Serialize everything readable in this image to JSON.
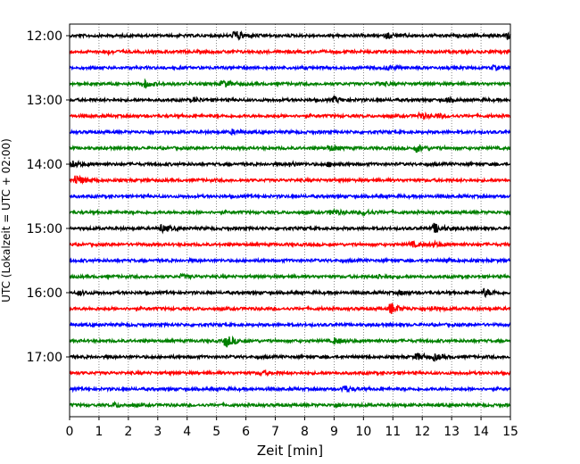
{
  "chart_data": {
    "type": "line",
    "title": "",
    "xlabel": "Zeit  [min]",
    "ylabel": "UTC (Lokalzeit = UTC + 02:00)",
    "xlim": [
      0,
      15
    ],
    "x_ticks": [
      "0",
      "1",
      "2",
      "3",
      "4",
      "5",
      "6",
      "7",
      "8",
      "9",
      "10",
      "11",
      "12",
      "13",
      "14",
      "15"
    ],
    "y_ticks": [
      "12:00",
      "13:00",
      "14:00",
      "15:00",
      "16:00",
      "17:00"
    ],
    "grid": "vertical dotted",
    "trace_interval_minutes": 15,
    "traces": [
      {
        "start": "12:00",
        "color": "#000000",
        "events": [
          [
            5.6,
            6
          ],
          [
            10.8,
            3
          ],
          [
            14.8,
            5
          ]
        ]
      },
      {
        "start": "12:15",
        "color": "#ff0000",
        "events": [
          [
            1.2,
            2
          ]
        ]
      },
      {
        "start": "12:30",
        "color": "#0000ff",
        "events": [
          [
            10.8,
            2
          ],
          [
            14.4,
            2
          ]
        ]
      },
      {
        "start": "12:45",
        "color": "#008000",
        "events": [
          [
            2.5,
            4
          ],
          [
            5.2,
            4
          ],
          [
            10.5,
            2
          ]
        ]
      },
      {
        "start": "13:00",
        "color": "#000000",
        "events": [
          [
            4.2,
            2
          ],
          [
            9.0,
            3
          ],
          [
            12.8,
            2
          ]
        ]
      },
      {
        "start": "13:15",
        "color": "#ff0000",
        "events": [
          [
            11.9,
            3
          ],
          [
            12.5,
            2
          ]
        ]
      },
      {
        "start": "13:30",
        "color": "#0000ff",
        "events": [
          [
            5.5,
            2
          ]
        ]
      },
      {
        "start": "13:45",
        "color": "#008000",
        "events": [
          [
            8.8,
            3
          ],
          [
            11.8,
            4
          ]
        ]
      },
      {
        "start": "14:00",
        "color": "#000000",
        "events": [
          [
            0.1,
            3
          ],
          [
            7.5,
            2
          ],
          [
            8.8,
            2
          ]
        ]
      },
      {
        "start": "14:15",
        "color": "#ff0000",
        "events": [
          [
            0.2,
            6
          ]
        ]
      },
      {
        "start": "14:30",
        "color": "#0000ff",
        "events": []
      },
      {
        "start": "14:45",
        "color": "#008000",
        "events": [
          [
            8.9,
            3
          ],
          [
            10.0,
            3
          ]
        ]
      },
      {
        "start": "15:00",
        "color": "#000000",
        "events": [
          [
            3.1,
            4
          ],
          [
            12.4,
            5
          ]
        ]
      },
      {
        "start": "15:15",
        "color": "#ff0000",
        "events": [
          [
            11.6,
            3
          ],
          [
            12.4,
            2
          ]
        ]
      },
      {
        "start": "15:30",
        "color": "#0000ff",
        "events": [
          [
            12.8,
            2
          ]
        ]
      },
      {
        "start": "15:45",
        "color": "#008000",
        "events": [
          [
            3.8,
            2
          ],
          [
            10.5,
            2
          ]
        ]
      },
      {
        "start": "16:00",
        "color": "#000000",
        "events": [
          [
            0.3,
            2
          ],
          [
            11.2,
            2
          ],
          [
            14.1,
            4
          ]
        ]
      },
      {
        "start": "16:15",
        "color": "#ff0000",
        "events": [
          [
            10.9,
            6
          ],
          [
            12.3,
            2
          ]
        ]
      },
      {
        "start": "16:30",
        "color": "#0000ff",
        "events": []
      },
      {
        "start": "16:45",
        "color": "#008000",
        "events": [
          [
            5.3,
            7
          ],
          [
            9.0,
            3
          ]
        ]
      },
      {
        "start": "17:00",
        "color": "#000000",
        "events": [
          [
            11.8,
            4
          ],
          [
            12.4,
            3
          ]
        ]
      },
      {
        "start": "17:15",
        "color": "#ff0000",
        "events": [
          [
            6.5,
            2
          ]
        ]
      },
      {
        "start": "17:30",
        "color": "#0000ff",
        "events": [
          [
            9.3,
            4
          ]
        ]
      },
      {
        "start": "17:45",
        "color": "#008000",
        "events": [
          [
            1.5,
            2
          ],
          [
            9.0,
            2
          ]
        ]
      }
    ]
  }
}
